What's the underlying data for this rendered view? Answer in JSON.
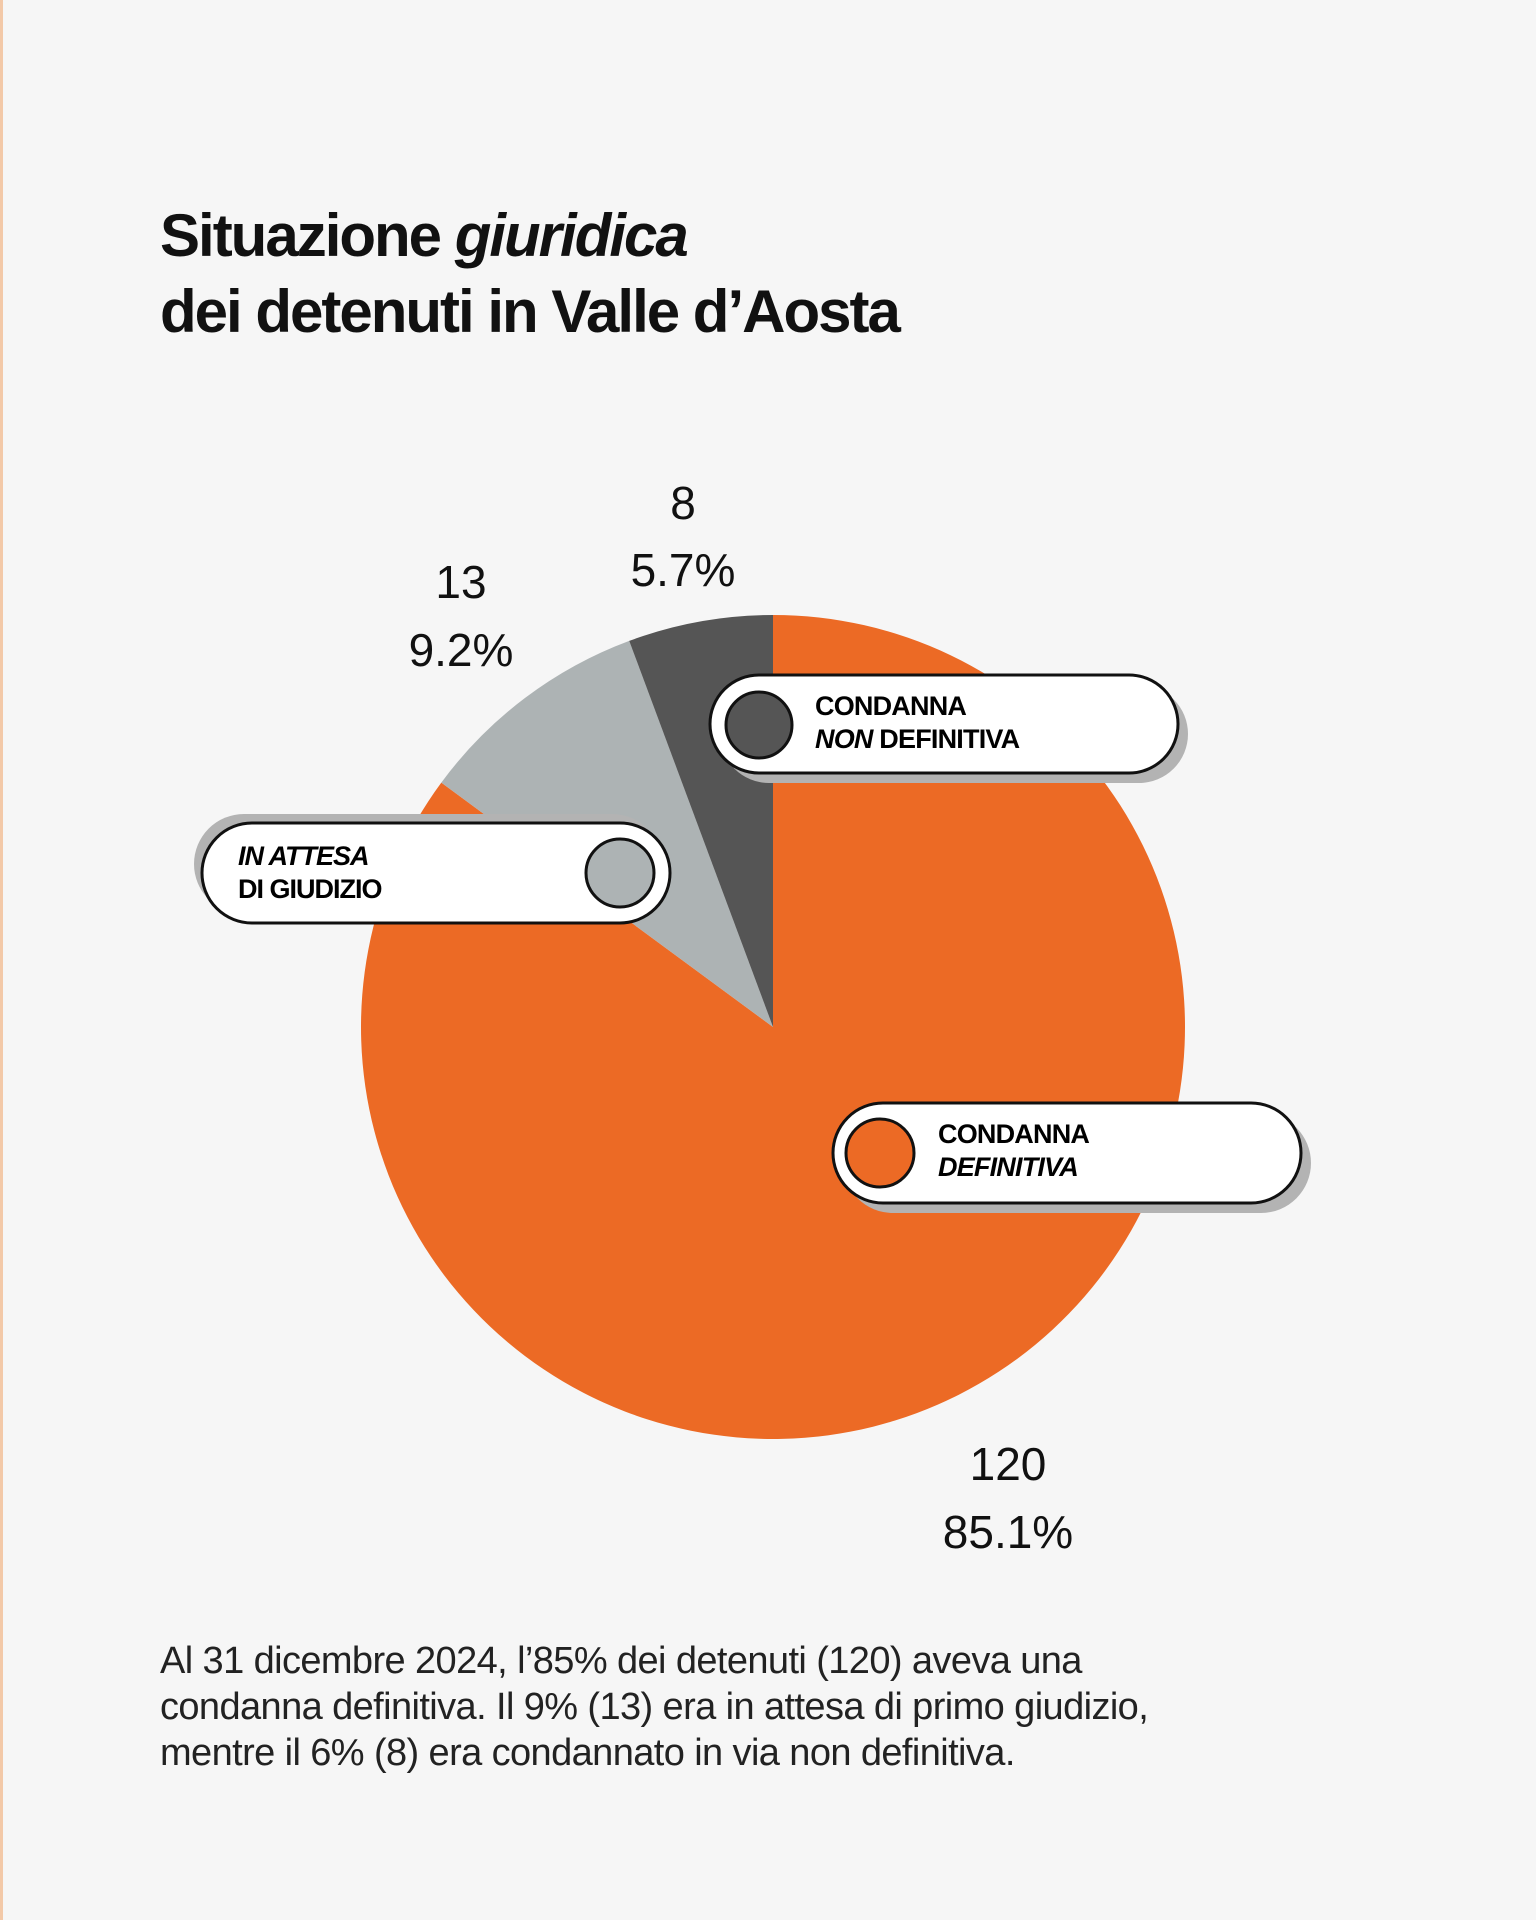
{
  "title": {
    "line1_prefix": "Situazione ",
    "line1_italic": "giuridica",
    "line2": "dei detenuti in Valle d’Aosta"
  },
  "chart_data": {
    "type": "pie",
    "title": "Situazione giuridica dei detenuti in Valle d’Aosta",
    "start_angle_deg": 0,
    "direction": "clockwise",
    "slices": [
      {
        "value": 120,
        "value_label": "120",
        "percent_label": "85.1%",
        "color": "#ec6a25",
        "legend": {
          "line1": "CONDANNA",
          "line2_italic": "DEFINITIVA",
          "line2_rest": ""
        }
      },
      {
        "value": 13,
        "value_label": "13",
        "percent_label": "9.2%",
        "color": "#adb3b4",
        "legend": {
          "line1_italic": "IN ATTESA",
          "line2": "DI GIUDIZIO"
        }
      },
      {
        "value": 8,
        "value_label": "8",
        "percent_label": "5.7%",
        "color": "#555555",
        "legend": {
          "line1": "CONDANNA",
          "line2_italic": "NON",
          "line2_rest": " DEFINITIVA"
        }
      }
    ]
  },
  "caption": {
    "line1": "Al 31 dicembre 2024, l’85% dei detenuti (120) aveva una",
    "line2": "condanna definitiva. Il 9% (13) era in attesa di primo giudizio,",
    "line3": "mentre il 6% (8) era condannato in via non definitiva."
  }
}
